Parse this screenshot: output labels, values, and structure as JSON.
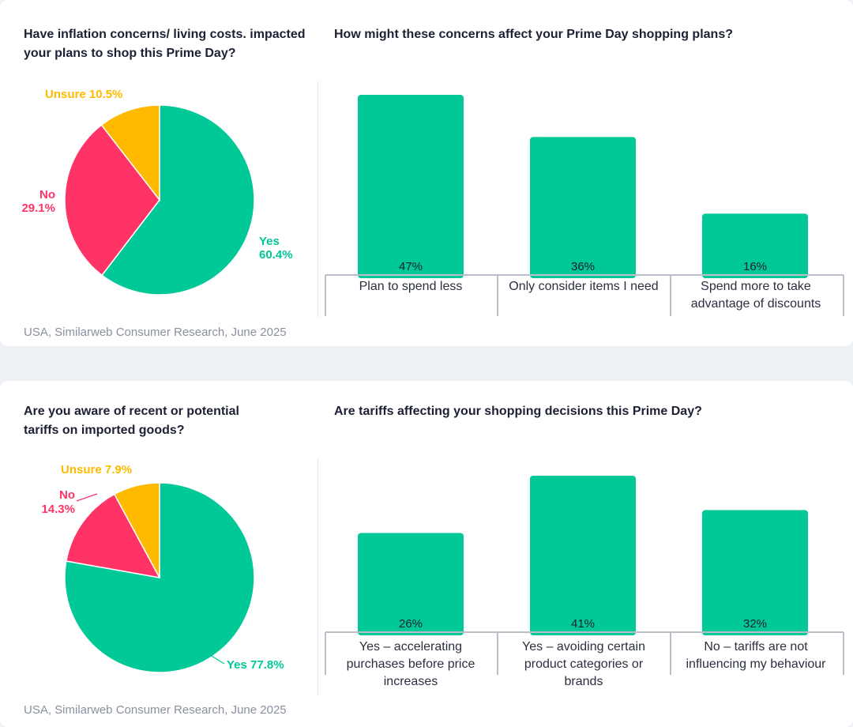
{
  "colors": {
    "yes": "#00c896",
    "no": "#ff3366",
    "unsure": "#ffba00",
    "bar": "#00c896"
  },
  "panel1": {
    "pie_question": "Have inflation concerns/ living costs. impacted your plans to shop this Prime Day?",
    "bar_question": "How might these concerns affect your Prime Day shopping plans?",
    "source": "USA, Similarweb Consumer Research, June 2025"
  },
  "panel2": {
    "pie_question": "Are you aware of recent or potential tariffs on imported goods?",
    "bar_question": "Are tariffs affecting your shopping decisions this Prime Day?",
    "source": "USA, Similarweb Consumer Research, June 2025"
  },
  "chart_data": [
    {
      "type": "pie",
      "title": "Have inflation concerns/ living costs. impacted your plans to shop this Prime Day?",
      "slices": [
        {
          "label": "Yes",
          "value": 60.4,
          "display": "60.4%"
        },
        {
          "label": "No",
          "value": 29.1,
          "display": "29.1%"
        },
        {
          "label": "Unsure",
          "value": 10.5,
          "display": "10.5%"
        }
      ]
    },
    {
      "type": "bar",
      "title": "How might these concerns affect your Prime Day shopping plans?",
      "categories": [
        "Plan to spend less",
        "Only consider items I need",
        "Spend more to take advantage of discounts"
      ],
      "values": [
        47,
        36,
        16
      ],
      "labels": [
        "47%",
        "36%",
        "16%"
      ],
      "ylim": [
        0,
        50
      ]
    },
    {
      "type": "pie",
      "title": "Are you aware of recent or potential tariffs on imported goods?",
      "slices": [
        {
          "label": "Yes",
          "value": 77.8,
          "display": "77.8%"
        },
        {
          "label": "No",
          "value": 14.3,
          "display": "14.3%"
        },
        {
          "label": "Unsure",
          "value": 7.9,
          "display": "7.9%"
        }
      ]
    },
    {
      "type": "bar",
      "title": "Are tariffs affecting your shopping decisions this Prime Day?",
      "categories": [
        "Yes – accelerating purchases before price increases",
        "Yes – avoiding certain product categories or brands",
        "No – tariffs are not influencing my behaviour"
      ],
      "values": [
        26,
        41,
        32
      ],
      "labels": [
        "26%",
        "41%",
        "32%"
      ],
      "ylim": [
        0,
        43
      ]
    }
  ]
}
